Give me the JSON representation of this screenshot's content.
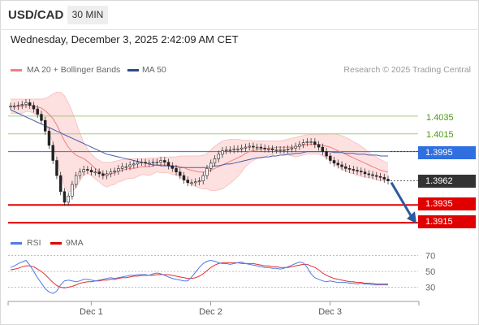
{
  "header": {
    "symbol": "USD/CAD",
    "timeframe": "30 MIN"
  },
  "timestamp": "Wednesday, December 3, 2025 2:42:09 AM CET",
  "legend": {
    "ma20": "MA 20 + Bollinger Bands",
    "ma50": "MA 50",
    "credit": "Research © 2025 Trading Central"
  },
  "rsi_legend": {
    "rsi": "RSI",
    "ma": "9MA"
  },
  "levels": [
    {
      "value": "1.4035",
      "kind": "resistance"
    },
    {
      "value": "1.4015",
      "kind": "resistance"
    },
    {
      "value": "1.3995",
      "kind": "pivot"
    },
    {
      "value": "1.3962",
      "kind": "last"
    },
    {
      "value": "1.3935",
      "kind": "support"
    },
    {
      "value": "1.3915",
      "kind": "support"
    }
  ],
  "colors": {
    "pivot": "#2f6fe0",
    "support": "#e00000",
    "resistance_line": "#a6cc7a",
    "resistance_text": "#4a9a12",
    "last": "#333333",
    "bollinger_fill": "#fde0e0",
    "ma20": "#f08080",
    "ma50": "#4a5aa8",
    "candle": "#222222",
    "rsi": "#4f7be6",
    "rsi_ma": "#e03030",
    "arrow": "#2c5aa0"
  },
  "chart_data": [
    {
      "type": "candlestick",
      "series_name": "USD/CAD 30 MIN",
      "x_ticks": [
        "Dec 1",
        "Dec 2",
        "Dec 3"
      ],
      "ylim": [
        1.3905,
        1.4065
      ],
      "y_level_lines": [
        1.4035,
        1.4015,
        1.3995,
        1.3935,
        1.3915
      ],
      "close": [
        1.4046,
        1.4046,
        1.4047,
        1.4048,
        1.405,
        1.4047,
        1.4043,
        1.4037,
        1.403,
        1.4018,
        1.4002,
        1.3985,
        1.3968,
        1.395,
        1.3938,
        1.3945,
        1.3958,
        1.3968,
        1.3972,
        1.3975,
        1.3974,
        1.3972,
        1.3972,
        1.397,
        1.3968,
        1.397,
        1.3972,
        1.3973,
        1.3976,
        1.3978,
        1.3978,
        1.398,
        1.3981,
        1.3983,
        1.3983,
        1.3982,
        1.3982,
        1.3983,
        1.3983,
        1.3985,
        1.3983,
        1.3979,
        1.3976,
        1.3972,
        1.3968,
        1.3963,
        1.396,
        1.396,
        1.3961,
        1.3962,
        1.3968,
        1.3976,
        1.3982,
        1.3987,
        1.3992,
        1.3996,
        1.3997,
        1.3997,
        1.3998,
        1.3998,
        1.3999,
        1.4,
        1.4001,
        1.4,
        1.4,
        1.3999,
        1.3998,
        1.3998,
        1.3997,
        1.3997,
        1.3997,
        1.3997,
        1.3998,
        1.3999,
        1.4001,
        1.4003,
        1.4005,
        1.4006,
        1.4006,
        1.4003,
        1.4,
        1.3995,
        1.399,
        1.3985,
        1.3982,
        1.398,
        1.3978,
        1.3976,
        1.3975,
        1.3974,
        1.3973,
        1.3972,
        1.397,
        1.3969,
        1.3968,
        1.3967,
        1.3966,
        1.3964,
        1.3962
      ],
      "ma20": [
        1.4046,
        1.4046,
        1.4046,
        1.4046,
        1.4047,
        1.4047,
        1.4046,
        1.4045,
        1.4044,
        1.4041,
        1.4037,
        1.4032,
        1.4025,
        1.4016,
        1.4007,
        1.4,
        1.3995,
        1.3991,
        1.3989,
        1.3987,
        1.3984,
        1.398,
        1.3976,
        1.3973,
        1.397,
        1.3969,
        1.397,
        1.3971,
        1.3973,
        1.3974,
        1.3975,
        1.3976,
        1.3976,
        1.3977,
        1.3978,
        1.3978,
        1.3978,
        1.3979,
        1.398,
        1.398,
        1.398,
        1.398,
        1.3979,
        1.3979,
        1.3978,
        1.3977,
        1.3975,
        1.3974,
        1.3973,
        1.3972,
        1.3972,
        1.3973,
        1.3974,
        1.3976,
        1.3978,
        1.398,
        1.3982,
        1.3984,
        1.3986,
        1.3988,
        1.399,
        1.3993,
        1.3995,
        1.3996,
        1.3997,
        1.3998,
        1.3998,
        1.3999,
        1.3999,
        1.4,
        1.4,
        1.4,
        1.4,
        1.4,
        1.4,
        1.4001,
        1.4002,
        1.4003,
        1.4003,
        1.4003,
        1.4003,
        1.4002,
        1.4001,
        1.4,
        1.3998,
        1.3996,
        1.3994,
        1.3992,
        1.399,
        1.3988,
        1.3986,
        1.3984,
        1.3982,
        1.398,
        1.3978,
        1.3976,
        1.3974,
        1.3973,
        1.3972
      ],
      "bb_upper": [
        1.4054,
        1.4054,
        1.4054,
        1.4054,
        1.4054,
        1.4054,
        1.4054,
        1.4054,
        1.4054,
        1.4055,
        1.4057,
        1.406,
        1.4062,
        1.4062,
        1.4058,
        1.405,
        1.404,
        1.4028,
        1.4016,
        1.4005,
        1.3998,
        1.3992,
        1.3988,
        1.3985,
        1.3983,
        1.3983,
        1.3983,
        1.3984,
        1.3985,
        1.3986,
        1.3986,
        1.3987,
        1.3987,
        1.3987,
        1.3987,
        1.3987,
        1.3988,
        1.3988,
        1.3988,
        1.3989,
        1.3989,
        1.3989,
        1.3989,
        1.3989,
        1.399,
        1.399,
        1.399,
        1.399,
        1.399,
        1.399,
        1.3991,
        1.3993,
        1.3997,
        1.4001,
        1.4004,
        1.4007,
        1.4008,
        1.4009,
        1.4009,
        1.4009,
        1.4008,
        1.4008,
        1.4008,
        1.4007,
        1.4007,
        1.4007,
        1.4007,
        1.4007,
        1.4007,
        1.4007,
        1.4007,
        1.4008,
        1.4009,
        1.401,
        1.4011,
        1.4012,
        1.4013,
        1.4014,
        1.4014,
        1.4014,
        1.4014,
        1.4014,
        1.4014,
        1.4015,
        1.4015,
        1.4014,
        1.4013,
        1.4011,
        1.4009,
        1.4006,
        1.4004,
        1.4001,
        1.3998,
        1.3994,
        1.3991,
        1.3989,
        1.3986,
        1.3984,
        1.3982
      ],
      "bb_lower": [
        1.4038,
        1.4038,
        1.4038,
        1.4038,
        1.404,
        1.404,
        1.4038,
        1.4036,
        1.4034,
        1.4027,
        1.4017,
        1.4004,
        1.3988,
        1.397,
        1.3956,
        1.395,
        1.395,
        1.3954,
        1.3962,
        1.3969,
        1.397,
        1.3968,
        1.3964,
        1.3961,
        1.3957,
        1.3955,
        1.3957,
        1.3958,
        1.3961,
        1.3962,
        1.3964,
        1.3965,
        1.3965,
        1.3967,
        1.3969,
        1.3969,
        1.3968,
        1.397,
        1.3972,
        1.3971,
        1.3971,
        1.3971,
        1.3969,
        1.3969,
        1.3966,
        1.3964,
        1.396,
        1.3958,
        1.3956,
        1.3954,
        1.3953,
        1.3953,
        1.3951,
        1.3951,
        1.3952,
        1.3953,
        1.3956,
        1.3959,
        1.3963,
        1.3967,
        1.3972,
        1.3978,
        1.3982,
        1.3985,
        1.3987,
        1.3989,
        1.3989,
        1.3991,
        1.3991,
        1.3993,
        1.3993,
        1.3992,
        1.3991,
        1.399,
        1.3989,
        1.399,
        1.3991,
        1.3992,
        1.3992,
        1.3992,
        1.3992,
        1.399,
        1.3988,
        1.3985,
        1.3981,
        1.3978,
        1.3975,
        1.3973,
        1.3971,
        1.397,
        1.3968,
        1.3967,
        1.3966,
        1.3966,
        1.3965,
        1.3963,
        1.3962,
        1.3962,
        1.3962
      ],
      "ma50": [
        1.4042,
        1.404,
        1.4038,
        1.4036,
        1.4034,
        1.4032,
        1.403,
        1.4028,
        1.4026,
        1.4024,
        1.4022,
        1.402,
        1.4018,
        1.4016,
        1.4014,
        1.4012,
        1.401,
        1.4008,
        1.4006,
        1.4004,
        1.4002,
        1.4,
        1.3998,
        1.3996,
        1.3994,
        1.3992,
        1.3991,
        1.399,
        1.3989,
        1.3988,
        1.3987,
        1.3986,
        1.3985,
        1.3984,
        1.3983,
        1.3982,
        1.3981,
        1.398,
        1.398,
        1.3979,
        1.3979,
        1.3979,
        1.3978,
        1.3978,
        1.3977,
        1.3977,
        1.3977,
        1.3977,
        1.3977,
        1.3977,
        1.3977,
        1.3977,
        1.3978,
        1.3979,
        1.3979,
        1.398,
        1.3981,
        1.3981,
        1.3982,
        1.3983,
        1.3984,
        1.3985,
        1.3986,
        1.3987,
        1.3988,
        1.3988,
        1.3989,
        1.3989,
        1.399,
        1.399,
        1.3991,
        1.3991,
        1.3992,
        1.3992,
        1.3993,
        1.3993,
        1.3994,
        1.3995,
        1.3995,
        1.3995,
        1.3995,
        1.3995,
        1.3995,
        1.3995,
        1.3994,
        1.3994,
        1.3994,
        1.3993,
        1.3993,
        1.3993,
        1.3992,
        1.3992,
        1.3992,
        1.3991,
        1.3991,
        1.3991,
        1.399,
        1.399,
        1.399
      ]
    },
    {
      "type": "line",
      "series_name": "RSI",
      "ylim": [
        15,
        80
      ],
      "y_ticks": [
        70,
        50,
        30
      ],
      "rsi": [
        55,
        57,
        60,
        62,
        64,
        58,
        50,
        42,
        35,
        28,
        24,
        22,
        25,
        33,
        38,
        39,
        38,
        37,
        38,
        40,
        40,
        39,
        38,
        39,
        40,
        41,
        42,
        41,
        42,
        43,
        44,
        45,
        45,
        46,
        46,
        46,
        45,
        47,
        48,
        47,
        45,
        43,
        41,
        40,
        39,
        38,
        38,
        43,
        49,
        55,
        60,
        63,
        64,
        63,
        61,
        60,
        60,
        59,
        60,
        61,
        62,
        60,
        59,
        58,
        57,
        56,
        55,
        55,
        54,
        54,
        53,
        54,
        56,
        58,
        60,
        62,
        61,
        55,
        47,
        42,
        40,
        38,
        37,
        38,
        37,
        36,
        36,
        36,
        35,
        35,
        34,
        35,
        34,
        34,
        33,
        33,
        33,
        33,
        33
      ],
      "rsi_ma": [
        52,
        53,
        54,
        56,
        57,
        57,
        56,
        53,
        50,
        46,
        41,
        36,
        32,
        30,
        29,
        30,
        31,
        33,
        35,
        36,
        37,
        37,
        38,
        38,
        39,
        39,
        40,
        40,
        41,
        42,
        42,
        43,
        44,
        44,
        45,
        45,
        45,
        45,
        46,
        46,
        46,
        46,
        45,
        44,
        43,
        42,
        41,
        41,
        42,
        44,
        47,
        51,
        55,
        58,
        60,
        61,
        61,
        61,
        61,
        61,
        60,
        60,
        60,
        60,
        59,
        58,
        57,
        57,
        56,
        56,
        55,
        55,
        55,
        56,
        57,
        58,
        59,
        59,
        57,
        55,
        52,
        48,
        45,
        43,
        41,
        40,
        39,
        38,
        37,
        37,
        36,
        36,
        35,
        35,
        35,
        34,
        34,
        34,
        34
      ]
    }
  ]
}
